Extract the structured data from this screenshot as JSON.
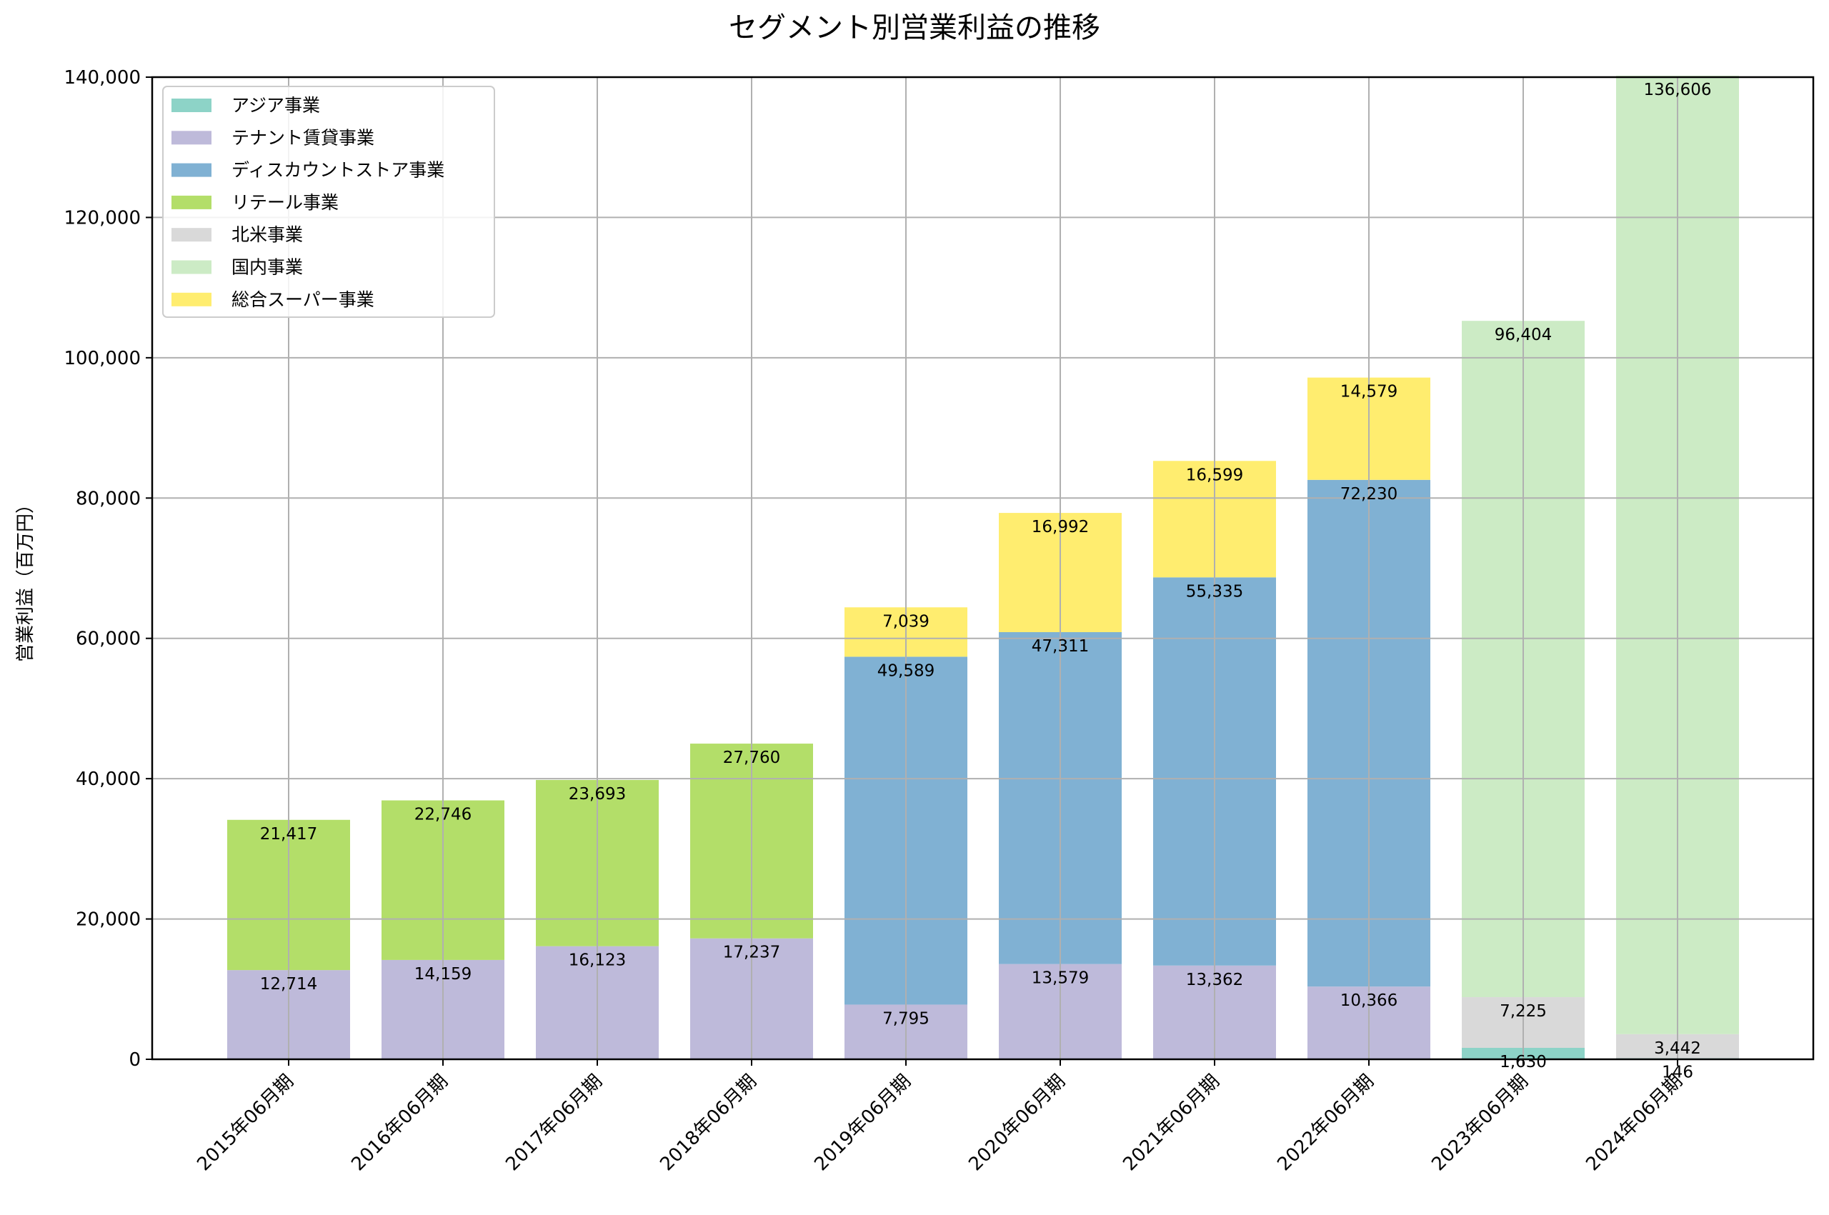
{
  "chart_data": {
    "type": "bar",
    "stacked": true,
    "title": "セグメント別営業利益の推移",
    "ylabel": "営業利益（百万円）",
    "xlabel": "",
    "ylim": [
      0,
      140000
    ],
    "yticks": [
      "0",
      "20,000",
      "40,000",
      "60,000",
      "80,000",
      "100,000",
      "120,000",
      "140,000"
    ],
    "grid": true,
    "legend_position": "top-left",
    "categories": [
      "2015年06月期",
      "2016年06月期",
      "2017年06月期",
      "2018年06月期",
      "2019年06月期",
      "2020年06月期",
      "2021年06月期",
      "2022年06月期",
      "2023年06月期",
      "2024年06月期"
    ],
    "series": [
      {
        "name": "アジア事業",
        "color": "#8dd3c7",
        "values": [
          null,
          null,
          null,
          null,
          null,
          null,
          null,
          null,
          1630,
          146
        ],
        "labels": [
          null,
          null,
          null,
          null,
          null,
          null,
          null,
          null,
          "1,630",
          "146"
        ]
      },
      {
        "name": "テナント賃貸事業",
        "color": "#bebada",
        "values": [
          12714,
          14159,
          16123,
          17237,
          7795,
          13579,
          13362,
          10366,
          null,
          null
        ],
        "labels": [
          "12,714",
          "14,159",
          "16,123",
          "17,237",
          "7,795",
          "13,579",
          "13,362",
          "10,366",
          null,
          null
        ]
      },
      {
        "name": "ディスカウントストア事業",
        "color": "#80b1d3",
        "values": [
          null,
          null,
          null,
          null,
          49589,
          47311,
          55335,
          72230,
          null,
          null
        ],
        "labels": [
          null,
          null,
          null,
          null,
          "49,589",
          "47,311",
          "55,335",
          "72,230",
          null,
          null
        ]
      },
      {
        "name": "リテール事業",
        "color": "#b3de69",
        "values": [
          21417,
          22746,
          23693,
          27760,
          null,
          null,
          null,
          null,
          null,
          null
        ],
        "labels": [
          "21,417",
          "22,746",
          "23,693",
          "27,760",
          null,
          null,
          null,
          null,
          null,
          null
        ]
      },
      {
        "name": "北米事業",
        "color": "#d9d9d9",
        "values": [
          null,
          null,
          null,
          null,
          null,
          null,
          null,
          null,
          7225,
          3442
        ],
        "labels": [
          null,
          null,
          null,
          null,
          null,
          null,
          null,
          null,
          "7,225",
          "3,442"
        ]
      },
      {
        "name": "国内事業",
        "color": "#ccebc5",
        "values": [
          null,
          null,
          null,
          null,
          null,
          null,
          null,
          null,
          96404,
          136606
        ],
        "labels": [
          null,
          null,
          null,
          null,
          null,
          null,
          null,
          null,
          "96,404",
          "136,606"
        ]
      },
      {
        "name": "総合スーパー事業",
        "color": "#ffed6f",
        "values": [
          null,
          null,
          null,
          null,
          7039,
          16992,
          16599,
          14579,
          null,
          null
        ],
        "labels": [
          null,
          null,
          null,
          null,
          "7,039",
          "16,992",
          "16,599",
          "14,579",
          null,
          null
        ]
      }
    ]
  }
}
